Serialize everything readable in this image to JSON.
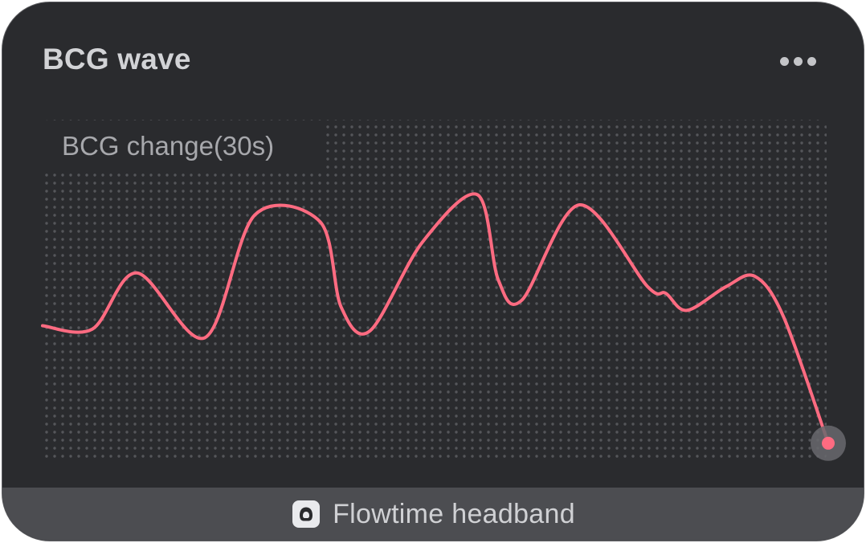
{
  "widget": {
    "title": "BCG wave",
    "more_icon": "more-horizontal-icon",
    "chart_label": "BCG change(30s)",
    "device_icon": "headband-icon",
    "device_name": "Flowtime headband"
  },
  "colors": {
    "card_background": "#2a2b2e",
    "footer_background": "#4c4d51",
    "wave": "#ff6b81",
    "grid_dot": "#55565a",
    "title_text": "#d2d3d6",
    "label_text": "#a7a8ac"
  },
  "chart_data": {
    "type": "line",
    "title": "BCG change(30s)",
    "xlabel": "",
    "ylabel": "",
    "grid": "dotted",
    "xlim": [
      0,
      30
    ],
    "ylim": [
      0,
      100
    ],
    "series": [
      {
        "values": [
          [
            0,
            39.5
          ],
          [
            1.9,
            38.5
          ],
          [
            3.6,
            55
          ],
          [
            6.2,
            36
          ],
          [
            8.1,
            72
          ],
          [
            10.6,
            70
          ],
          [
            11.4,
            45
          ],
          [
            12.5,
            38
          ],
          [
            14.5,
            64
          ],
          [
            16.6,
            78
          ],
          [
            17.4,
            53
          ],
          [
            18.3,
            47
          ],
          [
            20.5,
            75
          ],
          [
            23.1,
            51
          ],
          [
            23.8,
            49
          ],
          [
            24.6,
            44
          ],
          [
            26.1,
            51
          ],
          [
            27.2,
            54
          ],
          [
            28.3,
            42
          ],
          [
            30,
            5
          ]
        ]
      }
    ]
  }
}
